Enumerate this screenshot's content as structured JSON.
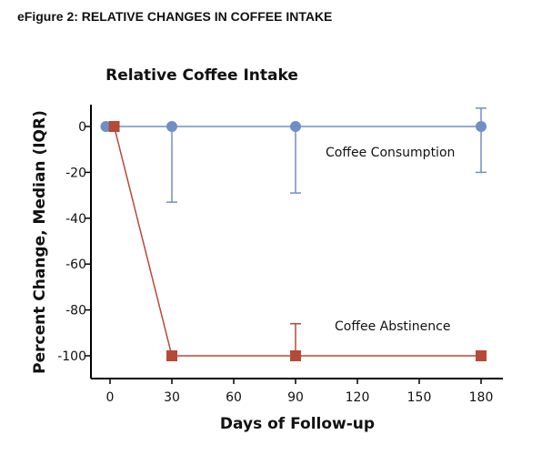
{
  "figure_header": "eFigure 2: RELATIVE CHANGES IN COFFEE INTAKE",
  "chart_data": {
    "type": "line",
    "title": "Relative Coffee  Intake",
    "xlabel": "Days of Follow-up",
    "ylabel": "Percent Change, Median  (IQR)",
    "xlim": [
      -5,
      185
    ],
    "ylim": [
      -110,
      10
    ],
    "xticks": [
      0,
      30,
      60,
      90,
      120,
      150,
      180
    ],
    "yticks": [
      0,
      -20,
      -40,
      -60,
      -80,
      -100
    ],
    "grid": false,
    "series": [
      {
        "name": "Coffee Consumption",
        "color": "#6f8fc4",
        "marker": "circle",
        "x": [
          -2,
          30,
          90,
          180
        ],
        "y": [
          0,
          0,
          0,
          0
        ],
        "err_low": [
          0,
          -33,
          -29,
          -20
        ],
        "err_high": [
          0,
          0,
          0,
          8
        ]
      },
      {
        "name": "Coffee Abstinence",
        "color": "#b54a36",
        "marker": "square",
        "x": [
          2,
          30,
          90,
          180
        ],
        "y": [
          0,
          -100,
          -100,
          -100
        ],
        "err_low": [
          0,
          -100,
          -100,
          -100
        ],
        "err_high": [
          0,
          -100,
          -86,
          -98
        ]
      }
    ]
  }
}
